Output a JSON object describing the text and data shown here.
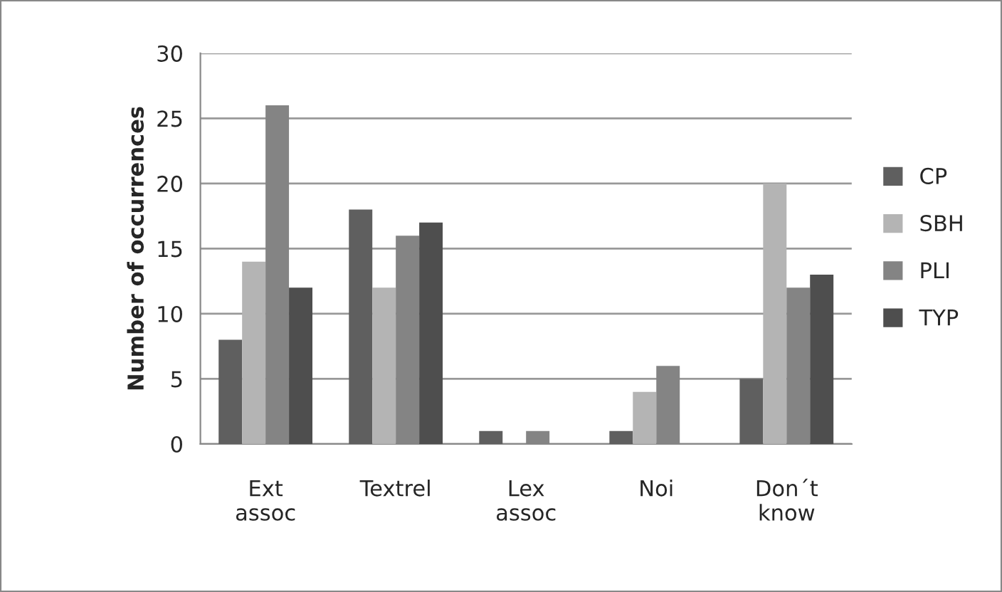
{
  "chart_data": {
    "type": "bar",
    "ylabel": "Number of occurrences",
    "categories": [
      "Ext\nassoc",
      "Textrel",
      "Lex\nassoc",
      "Noi",
      "Don´t\nknow"
    ],
    "series": [
      {
        "name": "CP",
        "color": "#5f5f5f",
        "values": [
          8,
          18,
          1,
          1,
          5
        ]
      },
      {
        "name": "SBH",
        "color": "#b4b4b4",
        "values": [
          14,
          12,
          0,
          4,
          20
        ]
      },
      {
        "name": "PLI",
        "color": "#848484",
        "values": [
          26,
          16,
          1,
          6,
          12
        ]
      },
      {
        "name": "TYP",
        "color": "#4e4e4e",
        "values": [
          12,
          17,
          0,
          0,
          13
        ]
      }
    ],
    "ylim": [
      0,
      30
    ],
    "yticks": [
      0,
      5,
      10,
      15,
      20,
      25,
      30
    ],
    "grid": "y",
    "legend": "right"
  }
}
